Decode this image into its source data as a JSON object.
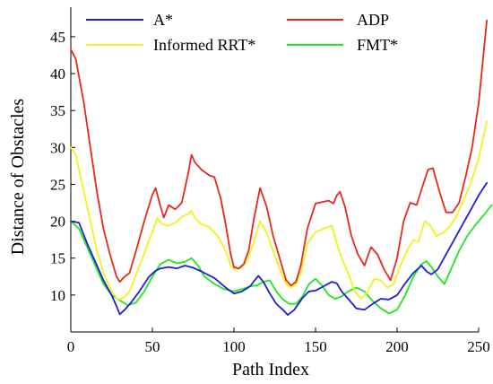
{
  "chart_data": {
    "type": "line",
    "title": "",
    "xlabel": "Path Index",
    "ylabel": "Distance of Obstacles",
    "xlim": [
      0,
      250
    ],
    "ylim": [
      5,
      49
    ],
    "xticks": [
      0,
      50,
      100,
      150,
      200,
      250
    ],
    "yticks": [
      10,
      15,
      20,
      25,
      30,
      35,
      40,
      45
    ],
    "grid": false,
    "legend_position": "top",
    "series": [
      {
        "name": "A*",
        "color": "#1f1fd6",
        "x": [
          0,
          5,
          10,
          15,
          20,
          25,
          28,
          30,
          33,
          37,
          42,
          48,
          52,
          55,
          60,
          65,
          70,
          75,
          80,
          88,
          95,
          100,
          105,
          110,
          112,
          115,
          118,
          122,
          126,
          130,
          133,
          137,
          142,
          146,
          150,
          155,
          160,
          163,
          166,
          170,
          175,
          180,
          185,
          190,
          195,
          200,
          205,
          210,
          215,
          218,
          221,
          225,
          230,
          235,
          240,
          245,
          250,
          255
        ],
        "y": [
          20,
          19.8,
          17,
          14.5,
          12,
          10,
          8.5,
          7.4,
          8,
          9,
          10.5,
          12.5,
          13.3,
          13.6,
          13.8,
          13.6,
          14,
          13.7,
          13.2,
          12.3,
          11,
          10.2,
          10.5,
          11.2,
          11.8,
          12.6,
          11.8,
          10.2,
          8.8,
          8,
          7.3,
          8,
          9.6,
          10.5,
          10.6,
          11.2,
          11.8,
          11.6,
          10.5,
          9.5,
          8.2,
          8,
          8.8,
          9.5,
          9.4,
          10,
          11.6,
          13,
          14,
          13.2,
          12.8,
          13.5,
          15.5,
          17.5,
          19.5,
          21.5,
          23.5,
          25.2
        ]
      },
      {
        "name": "ADP",
        "color": "#e8281e",
        "x": [
          0,
          3,
          8,
          12,
          16,
          20,
          24,
          28,
          30,
          33,
          36,
          40,
          45,
          50,
          52,
          55,
          57,
          60,
          64,
          68,
          72,
          74,
          76,
          80,
          85,
          88,
          92,
          95,
          98,
          100,
          103,
          106,
          109,
          112,
          116,
          120,
          124,
          128,
          132,
          135,
          138,
          141,
          145,
          150,
          154,
          158,
          161,
          163,
          165,
          168,
          172,
          176,
          180,
          184,
          188,
          192,
          196,
          200,
          204,
          208,
          212,
          216,
          219,
          222,
          226,
          230,
          234,
          238,
          242,
          246,
          250,
          255
        ],
        "y": [
          43.3,
          42,
          36,
          30,
          24,
          19,
          15.5,
          12.5,
          11.8,
          12.5,
          13,
          16,
          20,
          23.6,
          24.5,
          22,
          20.5,
          22.2,
          21.6,
          22.5,
          26.5,
          29,
          28,
          27,
          26.2,
          26,
          23,
          19.5,
          15.5,
          13.8,
          13.6,
          14.2,
          16,
          20,
          24.5,
          22,
          18,
          15,
          12,
          11.3,
          11.8,
          14,
          19,
          22.4,
          22.6,
          22.8,
          22.4,
          23.5,
          24,
          22,
          18,
          15.5,
          14,
          16.5,
          15.5,
          13.5,
          12,
          15,
          20,
          22.5,
          22.2,
          25,
          27,
          27.2,
          24,
          21.2,
          21.2,
          22.5,
          26,
          30,
          36,
          47.2
        ]
      },
      {
        "name": "Informed RRT*",
        "color": "#f2f21b",
        "x": [
          0,
          3,
          8,
          12,
          16,
          20,
          25,
          28,
          30,
          33,
          36,
          40,
          44,
          48,
          50,
          53,
          56,
          60,
          64,
          68,
          72,
          74,
          76,
          80,
          85,
          90,
          95,
          98,
          100,
          104,
          108,
          112,
          116,
          120,
          124,
          128,
          132,
          135,
          138,
          141,
          145,
          150,
          155,
          160,
          163,
          166,
          170,
          174,
          178,
          182,
          186,
          190,
          194,
          198,
          202,
          206,
          210,
          213,
          217,
          220,
          224,
          228,
          232,
          236,
          240,
          245,
          250,
          255
        ],
        "y": [
          30,
          29,
          24,
          20,
          16,
          13,
          10.5,
          9.6,
          9.4,
          9.8,
          10.5,
          12.8,
          15,
          17.5,
          18.5,
          20.5,
          19.6,
          19.4,
          19.8,
          20.6,
          21,
          21.4,
          20.5,
          19.6,
          19.2,
          18,
          16,
          14,
          13.5,
          13.6,
          14.5,
          17,
          20,
          18.5,
          16,
          13.5,
          11.5,
          11,
          11.5,
          13,
          17,
          18.5,
          19,
          19.4,
          17,
          15,
          13,
          10.5,
          9.5,
          10.5,
          12.2,
          12,
          11,
          11.5,
          14,
          16,
          17.5,
          17.2,
          20,
          19.5,
          18,
          18.4,
          19.2,
          20.5,
          22.5,
          25,
          28.5,
          33.5
        ]
      },
      {
        "name": "FMT*",
        "color": "#1ee81e",
        "x": [
          0,
          5,
          10,
          15,
          20,
          25,
          30,
          35,
          40,
          45,
          50,
          55,
          60,
          65,
          70,
          74,
          78,
          82,
          88,
          94,
          100,
          105,
          110,
          114,
          118,
          122,
          126,
          130,
          134,
          138,
          142,
          146,
          150,
          154,
          158,
          162,
          166,
          170,
          175,
          180,
          185,
          190,
          195,
          200,
          205,
          210,
          215,
          218,
          221,
          225,
          229,
          233,
          238,
          243,
          248,
          253,
          258
        ],
        "y": [
          20,
          19,
          16.5,
          14,
          11.5,
          10,
          9.3,
          8.6,
          9,
          10.5,
          12.5,
          14.2,
          14.8,
          14.3,
          14.5,
          15,
          14,
          12.5,
          11.5,
          10.8,
          10.5,
          10.8,
          11.2,
          11.3,
          11.8,
          12,
          10.5,
          9.4,
          8.8,
          8.8,
          9.8,
          11.5,
          12.2,
          11.3,
          10,
          9.5,
          9.8,
          10.5,
          11,
          10.5,
          9.2,
          8.2,
          7.5,
          8,
          10,
          12.5,
          14.2,
          14.6,
          13.8,
          12.5,
          11.5,
          13.5,
          16,
          18,
          19.5,
          20.8,
          22.2
        ]
      }
    ]
  }
}
